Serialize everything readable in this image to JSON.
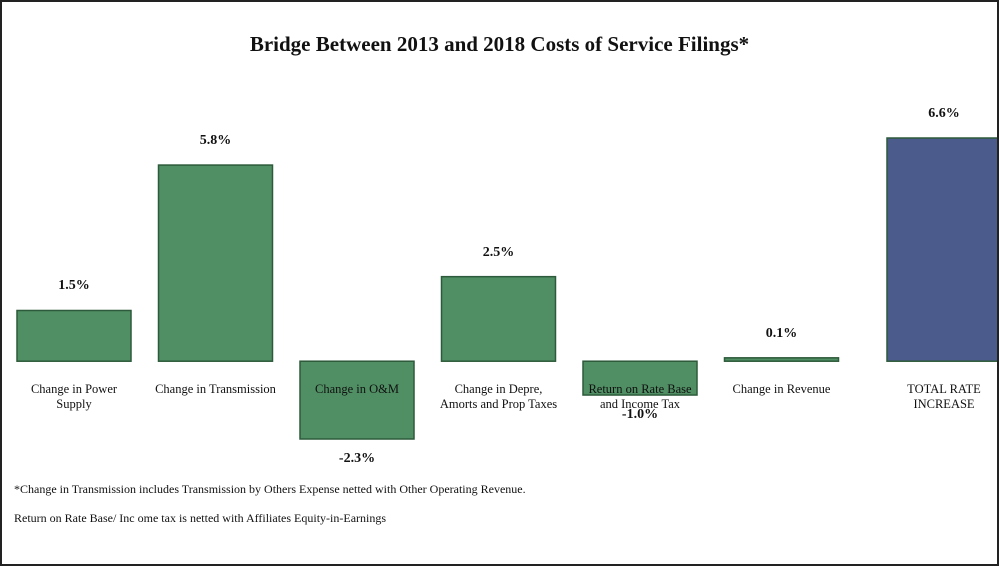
{
  "chart_data": {
    "type": "bar",
    "title": "Bridge Between 2013 and 2018 Costs of Service Filings*",
    "categories": [
      "Change in Power Supply",
      "Change in Transmission",
      "Change in O&M",
      "Change in Depre, Amorts and Prop Taxes",
      "Return on Rate Base and Income Tax",
      "Change in Revenue",
      "TOTAL RATE INCREASE"
    ],
    "values": [
      1.5,
      5.8,
      -2.3,
      2.5,
      -1.0,
      0.1,
      6.6
    ],
    "value_labels": [
      "1.5%",
      "5.8%",
      "-2.3%",
      "2.5%",
      "-1.0%",
      "0.1%",
      "6.6%"
    ],
    "colors": [
      "#4f8f63",
      "#4f8f63",
      "#4f8f63",
      "#4f8f63",
      "#4f8f63",
      "#4f8f63",
      "#4b5b8b"
    ],
    "notes": [
      "*Change in Transmission includes Transmission by Others Expense netted with Other Operating Revenue.",
      "Return on Rate Base/ Inc ome tax is netted with Affiliates Equity-in-Earnings"
    ]
  }
}
